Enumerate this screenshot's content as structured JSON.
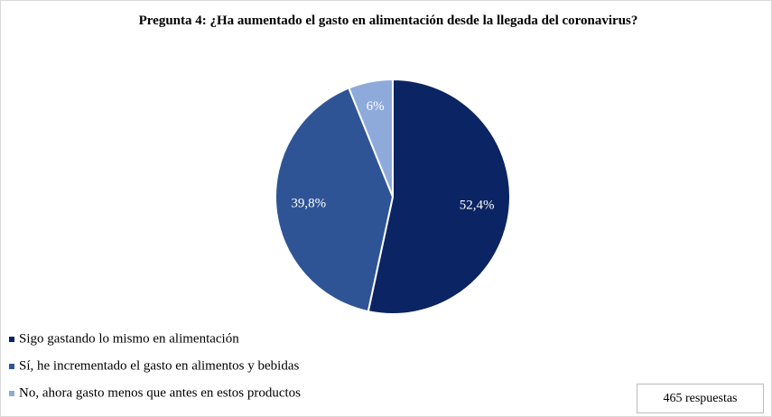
{
  "chart_data": {
    "type": "pie",
    "title": "Pregunta 4: ¿Ha aumentado el gasto en alimentación desde la llegada del coronavirus?",
    "categories": [
      "Sigo gastando lo mismo en alimentación",
      "Sí, he incrementado el gasto en alimentos y bebidas",
      "No, ahora gasto menos que antes en estos productos"
    ],
    "values": [
      52.4,
      39.8,
      6
    ],
    "value_labels": [
      "52,4%",
      "39,8%",
      "6%"
    ],
    "colors": [
      "#0b2463",
      "#2f5496",
      "#8eaadb"
    ],
    "legend": "bottom-left",
    "annotation": "465 respuestas"
  }
}
